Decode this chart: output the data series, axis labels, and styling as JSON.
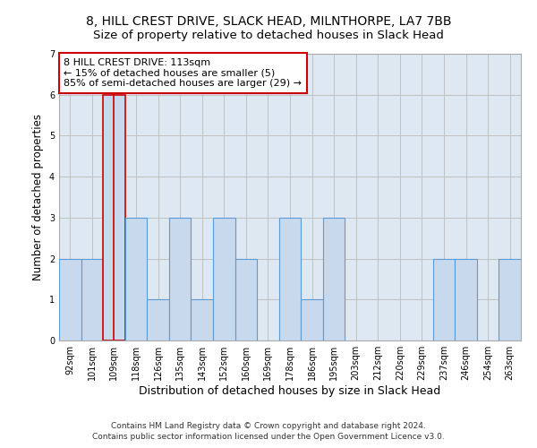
{
  "title": "8, HILL CREST DRIVE, SLACK HEAD, MILNTHORPE, LA7 7BB",
  "subtitle": "Size of property relative to detached houses in Slack Head",
  "xlabel": "Distribution of detached houses by size in Slack Head",
  "ylabel": "Number of detached properties",
  "categories": [
    "92sqm",
    "101sqm",
    "109sqm",
    "118sqm",
    "126sqm",
    "135sqm",
    "143sqm",
    "152sqm",
    "160sqm",
    "169sqm",
    "178sqm",
    "186sqm",
    "195sqm",
    "203sqm",
    "212sqm",
    "220sqm",
    "229sqm",
    "237sqm",
    "246sqm",
    "254sqm",
    "263sqm"
  ],
  "values": [
    2,
    2,
    6,
    3,
    1,
    3,
    1,
    3,
    2,
    0,
    3,
    1,
    3,
    0,
    0,
    0,
    0,
    2,
    2,
    0,
    2
  ],
  "highlight_index": 2,
  "bar_color": "#c8d9ed",
  "bar_edge_color": "#5b9bd5",
  "highlight_bar_edge_color": "#cc0000",
  "ylim": [
    0,
    7
  ],
  "yticks": [
    0,
    1,
    2,
    3,
    4,
    5,
    6,
    7
  ],
  "background_color": "#ffffff",
  "plot_bg_color": "#dde8f3",
  "grid_color": "#c0c0c0",
  "annotation_line1": "8 HILL CREST DRIVE: 113sqm",
  "annotation_line2": "← 15% of detached houses are smaller (5)",
  "annotation_line3": "85% of semi-detached houses are larger (29) →",
  "annotation_box_edge_color": "#cc0000",
  "footer_line1": "Contains HM Land Registry data © Crown copyright and database right 2024.",
  "footer_line2": "Contains public sector information licensed under the Open Government Licence v3.0.",
  "title_fontsize": 10,
  "subtitle_fontsize": 9.5,
  "xlabel_fontsize": 9,
  "ylabel_fontsize": 8.5,
  "tick_fontsize": 7,
  "annotation_fontsize": 8,
  "footer_fontsize": 6.5
}
